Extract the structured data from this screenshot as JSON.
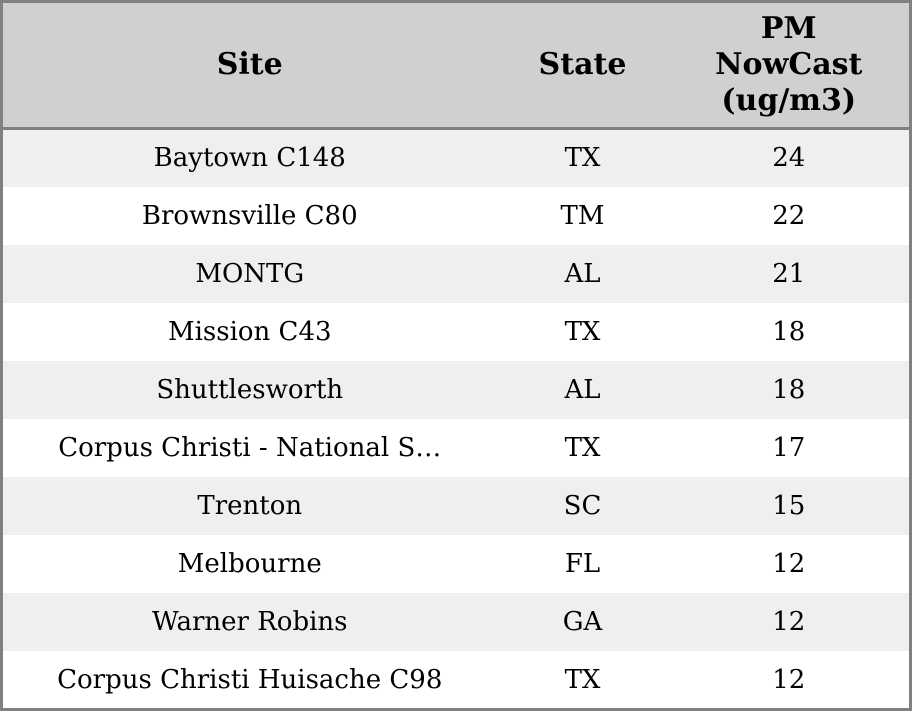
{
  "table": {
    "columns": [
      {
        "label": "Site"
      },
      {
        "label": "State"
      },
      {
        "label": "PM NowCast (ug/m3)"
      }
    ],
    "rows": [
      {
        "site": "Baytown C148",
        "state": "TX",
        "pm_nowcast": "24"
      },
      {
        "site": "Brownsville C80",
        "state": "TM",
        "pm_nowcast": "22"
      },
      {
        "site": "MONTG",
        "state": "AL",
        "pm_nowcast": "21"
      },
      {
        "site": "Mission C43",
        "state": "TX",
        "pm_nowcast": "18"
      },
      {
        "site": "Shuttlesworth",
        "state": "AL",
        "pm_nowcast": "18"
      },
      {
        "site": "Corpus Christi - National S…",
        "state": "TX",
        "pm_nowcast": "17"
      },
      {
        "site": "Trenton",
        "state": "SC",
        "pm_nowcast": "15"
      },
      {
        "site": "Melbourne",
        "state": "FL",
        "pm_nowcast": "12"
      },
      {
        "site": "Warner Robins",
        "state": "GA",
        "pm_nowcast": "12"
      },
      {
        "site": "Corpus Christi Huisache C98",
        "state": "TX",
        "pm_nowcast": "12"
      }
    ],
    "colors": {
      "header_bg": "#d0d0d0",
      "row_alt_bg": "#efefef",
      "row_bg": "#ffffff",
      "border": "#808080",
      "text": "#000000"
    }
  }
}
